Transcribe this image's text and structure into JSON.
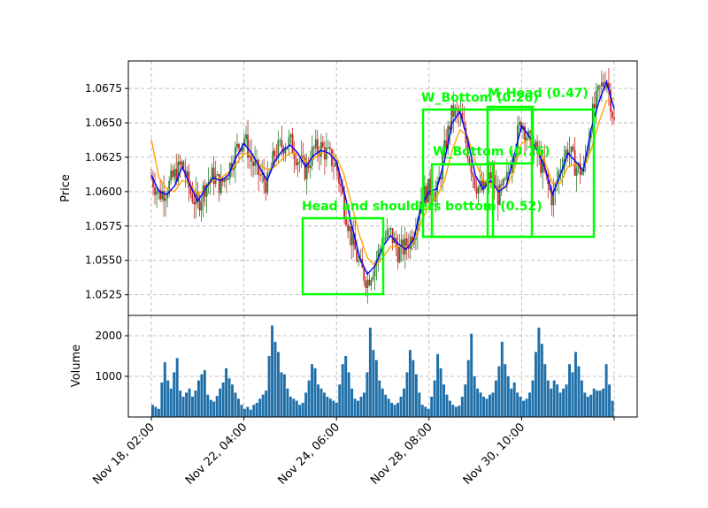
{
  "chart_data": {
    "type": "candlestick",
    "price_panel": {
      "ylabel": "Price",
      "ylim": [
        1.051,
        1.0695
      ],
      "yticks": [
        "1.0525",
        "1.0550",
        "1.0575",
        "1.0600",
        "1.0625",
        "1.0650",
        "1.0675"
      ],
      "grid": true,
      "ma_fast_color": "#0000ff",
      "ma_slow_color": "#ffa500",
      "up_color": "#2e7d32",
      "down_color": "#c62828",
      "ma_fast": [
        1.0612,
        1.06,
        1.0598,
        1.0604,
        1.0618,
        1.0605,
        1.0593,
        1.0602,
        1.061,
        1.0608,
        1.0612,
        1.0625,
        1.0635,
        1.0628,
        1.0618,
        1.0608,
        1.0622,
        1.063,
        1.0634,
        1.0628,
        1.0618,
        1.0626,
        1.063,
        1.0628,
        1.0622,
        1.06,
        1.0575,
        1.0552,
        1.054,
        1.0546,
        1.056,
        1.0568,
        1.0562,
        1.0558,
        1.0565,
        1.059,
        1.06,
        1.0602,
        1.0622,
        1.065,
        1.0658,
        1.0638,
        1.0612,
        1.0602,
        1.0608,
        1.06,
        1.0604,
        1.0626,
        1.0648,
        1.064,
        1.063,
        1.0618,
        1.0598,
        1.0612,
        1.0628,
        1.0622,
        1.0615,
        1.0645,
        1.0665,
        1.068,
        1.066
      ],
      "ma_slow": [
        1.0638,
        1.061,
        1.0602,
        1.06,
        1.0608,
        1.0606,
        1.0598,
        1.0602,
        1.0608,
        1.061,
        1.0614,
        1.062,
        1.0628,
        1.0626,
        1.062,
        1.0616,
        1.0618,
        1.0624,
        1.0628,
        1.0627,
        1.0622,
        1.0624,
        1.0628,
        1.0628,
        1.0625,
        1.0612,
        1.059,
        1.0568,
        1.0552,
        1.0546,
        1.0552,
        1.056,
        1.056,
        1.056,
        1.0563,
        1.0578,
        1.059,
        1.0596,
        1.0608,
        1.063,
        1.0645,
        1.064,
        1.0622,
        1.0608,
        1.0606,
        1.0602,
        1.0603,
        1.0615,
        1.0635,
        1.0638,
        1.0632,
        1.0622,
        1.0606,
        1.0606,
        1.0618,
        1.062,
        1.0616,
        1.063,
        1.065,
        1.0666,
        1.0668
      ],
      "close": [
        1.061,
        1.0598,
        1.0602,
        1.0612,
        1.062,
        1.06,
        1.059,
        1.0605,
        1.0612,
        1.0604,
        1.0616,
        1.063,
        1.064,
        1.0622,
        1.0612,
        1.0605,
        1.0628,
        1.0634,
        1.0636,
        1.0624,
        1.0615,
        1.063,
        1.0632,
        1.0626,
        1.0618,
        1.059,
        1.0565,
        1.0545,
        1.0535,
        1.0548,
        1.0565,
        1.057,
        1.0556,
        1.056,
        1.057,
        1.0595,
        1.0602,
        1.0598,
        1.063,
        1.0658,
        1.0655,
        1.063,
        1.0606,
        1.06,
        1.0612,
        1.0596,
        1.0606,
        1.0632,
        1.0652,
        1.0636,
        1.0628,
        1.0612,
        1.0594,
        1.0618,
        1.0632,
        1.0618,
        1.0614,
        1.0652,
        1.0672,
        1.0684,
        1.065
      ]
    },
    "volume_panel": {
      "ylabel": "Volume",
      "ylim": [
        0,
        2500
      ],
      "yticks": [
        "1000",
        "2000"
      ],
      "bar_color": "#1f6fa8",
      "values": [
        300,
        250,
        200,
        850,
        1350,
        900,
        700,
        1100,
        1450,
        650,
        500,
        600,
        700,
        500,
        650,
        900,
        1050,
        1150,
        550,
        420,
        380,
        520,
        700,
        850,
        1200,
        950,
        800,
        600,
        450,
        300,
        200,
        250,
        180,
        300,
        350,
        450,
        550,
        650,
        1500,
        2250,
        1850,
        1600,
        1100,
        1050,
        700,
        500,
        450,
        400,
        300,
        350,
        600,
        900,
        1300,
        1200,
        800,
        700,
        600,
        500,
        450,
        400,
        350,
        800,
        1300,
        1500,
        1100,
        700,
        450,
        400,
        500,
        600,
        1100,
        2200,
        1650,
        1400,
        900,
        700,
        550,
        450,
        350,
        300,
        350,
        500,
        700,
        1100,
        1650,
        1400,
        1050,
        600,
        300,
        250,
        200,
        500,
        900,
        1550,
        1200,
        800,
        550,
        400,
        300,
        250,
        280,
        500,
        800,
        1400,
        2050,
        1000,
        700,
        600,
        500,
        450,
        550,
        600,
        900,
        1250,
        1850,
        1300,
        1000,
        700,
        850,
        600,
        500,
        400,
        450,
        600,
        900,
        1600,
        2200,
        1800,
        1300,
        900,
        700,
        900,
        800,
        600,
        700,
        800,
        1300,
        1100,
        1600,
        1250,
        900,
        600,
        500,
        550,
        700,
        650,
        650,
        700,
        1300,
        800,
        400
      ]
    },
    "x_ticks": [
      "Nov 18, 02:00",
      "Nov 22, 04:00",
      "Nov 24, 06:00",
      "Nov 28, 08:00",
      "Nov 30, 10:00"
    ],
    "pattern_boxes": [
      {
        "label": "Head and shoulders bottom (0.52)",
        "color": "#00ff00"
      },
      {
        "label": "W_Bottom (0.26)",
        "color": "#00ff00"
      },
      {
        "label": "W_Bottom (0.76)",
        "color": "#00ff00"
      },
      {
        "label": "M_Head (0.47)",
        "color": "#00ff00"
      }
    ]
  }
}
